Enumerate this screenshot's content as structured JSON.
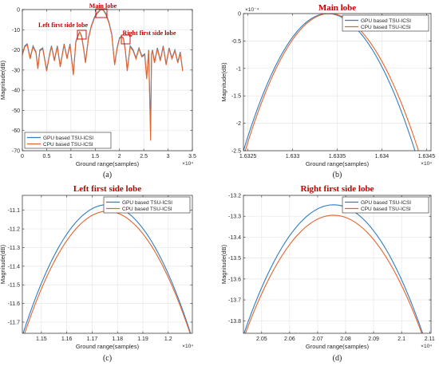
{
  "chart_data": [
    {
      "type": "line",
      "panel_label": "(a)",
      "xlabel": "Ground range(samples)",
      "ylabel": "Magnitude(dB)",
      "x_exponent": "×10⁴",
      "xlim": [
        0,
        3.5
      ],
      "ylim": [
        -70,
        0
      ],
      "xticks": [
        0,
        0.5,
        1,
        1.5,
        2,
        2.5,
        3,
        3.5
      ],
      "xtick_labels": [
        "0",
        "0.5",
        "1",
        "1.5",
        "2",
        "2.5",
        "3",
        "3.5"
      ],
      "yticks": [
        0,
        -10,
        -20,
        -30,
        -40,
        -50,
        -60,
        -70
      ],
      "ytick_labels": [
        "0",
        "-10",
        "-20",
        "-30",
        "-40",
        "-50",
        "-60",
        "-70"
      ],
      "grid": true,
      "legend_position": "bottom-left",
      "annotations": [
        {
          "text": "Main lobe",
          "x": 1.634,
          "y": -1
        },
        {
          "text": "Left first side lobe",
          "x": 1.176,
          "y": -11
        },
        {
          "text": "Right first side lobe",
          "x": 2.076,
          "y": -13
        }
      ],
      "series": [
        {
          "name": "GPU based TSU-ICSI",
          "color": "#2E7EC2",
          "x": [
            0.0,
            0.05,
            0.1,
            0.16,
            0.22,
            0.28,
            0.32,
            0.36,
            0.42,
            0.5,
            0.56,
            0.6,
            0.66,
            0.72,
            0.78,
            0.86,
            0.92,
            0.98,
            1.05,
            1.1,
            1.14,
            1.18,
            1.22,
            1.26,
            1.3,
            1.36,
            1.42,
            1.48,
            1.54,
            1.6,
            1.634,
            1.67,
            1.72,
            1.78,
            1.84,
            1.9,
            1.95,
            2.0,
            2.04,
            2.08,
            2.12,
            2.16,
            2.22,
            2.28,
            2.34,
            2.4,
            2.46,
            2.52,
            2.56,
            2.6,
            2.64,
            2.66,
            2.68,
            2.72,
            2.78,
            2.84,
            2.9,
            2.96,
            3.02,
            3.08,
            3.14,
            3.2,
            3.25,
            3.3
          ],
          "y": [
            -22,
            -18,
            -17,
            -24,
            -18,
            -21,
            -29,
            -20,
            -19,
            -30,
            -22,
            -18,
            -25,
            -18,
            -28,
            -17,
            -24,
            -17,
            -32,
            -16,
            -13,
            -11.1,
            -13,
            -19,
            -26,
            -14,
            -8,
            -4,
            -1.5,
            -0.2,
            0,
            -0.3,
            -2,
            -6,
            -12,
            -27,
            -19,
            -14,
            -13.3,
            -14,
            -20,
            -30,
            -18,
            -20,
            -24,
            -19,
            -23,
            -22,
            -34,
            -20,
            -60,
            -22,
            -20,
            -26,
            -19,
            -25,
            -18,
            -27,
            -19,
            -24,
            -20,
            -26,
            -21,
            -30
          ]
        },
        {
          "name": "CPU based TSU-ICSI",
          "color": "#E8632B",
          "x": [
            0.0,
            0.05,
            0.1,
            0.16,
            0.22,
            0.28,
            0.32,
            0.36,
            0.42,
            0.5,
            0.56,
            0.6,
            0.66,
            0.72,
            0.78,
            0.86,
            0.92,
            0.98,
            1.05,
            1.1,
            1.14,
            1.18,
            1.22,
            1.26,
            1.3,
            1.36,
            1.42,
            1.48,
            1.54,
            1.6,
            1.634,
            1.67,
            1.72,
            1.78,
            1.84,
            1.9,
            1.95,
            2.0,
            2.04,
            2.08,
            2.12,
            2.16,
            2.22,
            2.28,
            2.34,
            2.4,
            2.46,
            2.52,
            2.56,
            2.6,
            2.64,
            2.66,
            2.68,
            2.72,
            2.78,
            2.84,
            2.9,
            2.96,
            3.02,
            3.08,
            3.14,
            3.2,
            3.25,
            3.3
          ],
          "y": [
            -22.5,
            -18.5,
            -17.5,
            -24.5,
            -18.5,
            -21.5,
            -29.5,
            -20.5,
            -19.5,
            -30.5,
            -22.5,
            -18.5,
            -25.5,
            -18.5,
            -28.5,
            -17.5,
            -24.5,
            -17.5,
            -32.5,
            -16.5,
            -13.5,
            -11.1,
            -13.5,
            -19.5,
            -26.5,
            -14.5,
            -8.5,
            -4.5,
            -2,
            -0.4,
            0,
            -0.5,
            -2.5,
            -6.5,
            -12.5,
            -27.5,
            -19.5,
            -14.5,
            -13.3,
            -14.5,
            -20.5,
            -30.5,
            -18.5,
            -20.5,
            -24.5,
            -19.5,
            -23.5,
            -22.5,
            -34.5,
            -20.5,
            -65,
            -22.5,
            -20.5,
            -26.5,
            -19.5,
            -25.5,
            -18.5,
            -27.5,
            -19.5,
            -24.5,
            -20.5,
            -26.5,
            -21.5,
            -30.5
          ]
        }
      ]
    },
    {
      "type": "line",
      "panel_label": "(b)",
      "title": "Main lobe",
      "xlabel": "Ground range(samples)",
      "ylabel": "Magnitude(dB)",
      "x_exponent": "×10⁴",
      "y_exponent": "×10⁻⁴",
      "xlim": [
        1.63245,
        1.63455
      ],
      "ylim": [
        -2.5,
        0
      ],
      "xticks": [
        1.6325,
        1.633,
        1.6335,
        1.634,
        1.6345
      ],
      "xtick_labels": [
        "1.6325",
        "1.633",
        "1.6335",
        "1.634",
        "1.6345"
      ],
      "yticks": [
        0,
        -0.5,
        -1,
        -1.5,
        -2,
        -2.5
      ],
      "ytick_labels": [
        "0",
        "-0.5",
        "-1",
        "-1.5",
        "-2",
        "-2.5"
      ],
      "grid": true,
      "legend_position": "top-right",
      "series": [
        {
          "name": "GPU based TSU-ICSI",
          "color": "#2E7EC2",
          "peak_x": 1.63339,
          "peak_y": 0,
          "left_x": 1.63245,
          "right_x": 1.63437,
          "edge_y": -2.5
        },
        {
          "name": "CPU based TSU-ICSI",
          "color": "#E8632B",
          "peak_x": 1.63341,
          "peak_y": 0,
          "left_x": 1.63247,
          "right_x": 1.63441,
          "edge_y": -2.5
        }
      ]
    },
    {
      "type": "line",
      "panel_label": "(c)",
      "title": "Left first side lobe",
      "xlabel": "Ground range(samples)",
      "ylabel": "Magnitude(dB)",
      "x_exponent": "×10⁴",
      "xlim": [
        1.1425,
        1.2095
      ],
      "ylim": [
        -11.76,
        -11.02
      ],
      "xticks": [
        1.15,
        1.16,
        1.17,
        1.18,
        1.19,
        1.2
      ],
      "xtick_labels": [
        "1.15",
        "1.16",
        "1.17",
        "1.18",
        "1.19",
        "1.2"
      ],
      "yticks": [
        -11.1,
        -11.2,
        -11.3,
        -11.4,
        -11.5,
        -11.6,
        -11.7
      ],
      "ytick_labels": [
        "-11.1",
        "-11.2",
        "-11.3",
        "-11.4",
        "-11.5",
        "-11.6",
        "-11.7"
      ],
      "grid": true,
      "legend_position": "top-right",
      "series": [
        {
          "name": "GPU based TSU-ICSI",
          "color": "#2E7EC2",
          "peak_x": 1.1758,
          "peak_y": -11.07,
          "left_x": 1.1428,
          "right_x": 1.2088,
          "edge_y": -11.76
        },
        {
          "name": "CPU based TSU-ICSI",
          "color": "#E8632B",
          "peak_x": 1.176,
          "peak_y": -11.105,
          "left_x": 1.1434,
          "right_x": 1.2086,
          "edge_y": -11.76
        }
      ]
    },
    {
      "type": "line",
      "panel_label": "(d)",
      "title": "Right first side lobe",
      "xlabel": "Ground range(samples)",
      "ylabel": "Magnitude(dB)",
      "x_exponent": "×10⁴",
      "xlim": [
        2.0435,
        2.1105
      ],
      "ylim": [
        -13.86,
        -13.2
      ],
      "xticks": [
        2.05,
        2.06,
        2.07,
        2.08,
        2.09,
        2.1,
        2.11
      ],
      "xtick_labels": [
        "2.05",
        "2.06",
        "2.07",
        "2.08",
        "2.09",
        "2.1",
        "2.11"
      ],
      "yticks": [
        -13.2,
        -13.3,
        -13.4,
        -13.5,
        -13.6,
        -13.7,
        -13.8
      ],
      "ytick_labels": [
        "-13.2",
        "-13.3",
        "-13.4",
        "-13.5",
        "-13.6",
        "-13.7",
        "-13.8"
      ],
      "grid": true,
      "legend_position": "top-right",
      "series": [
        {
          "name": "GPU based TSU-ICSI",
          "color": "#2E7EC2",
          "peak_x": 2.0757,
          "peak_y": -13.245,
          "left_x": 2.0437,
          "right_x": 2.1075,
          "edge_y": -13.86
        },
        {
          "name": "CPU based TSU-ICSI",
          "color": "#E8632B",
          "peak_x": 2.0757,
          "peak_y": -13.295,
          "left_x": 2.0442,
          "right_x": 2.1072,
          "edge_y": -13.86
        }
      ]
    }
  ],
  "colors": {
    "gpu": "#2E7EC2",
    "cpu": "#E8632B",
    "title_red": "#C00000",
    "annotation_red": "#C00000",
    "grid": "#E6E6E6",
    "axis": "#262626"
  }
}
